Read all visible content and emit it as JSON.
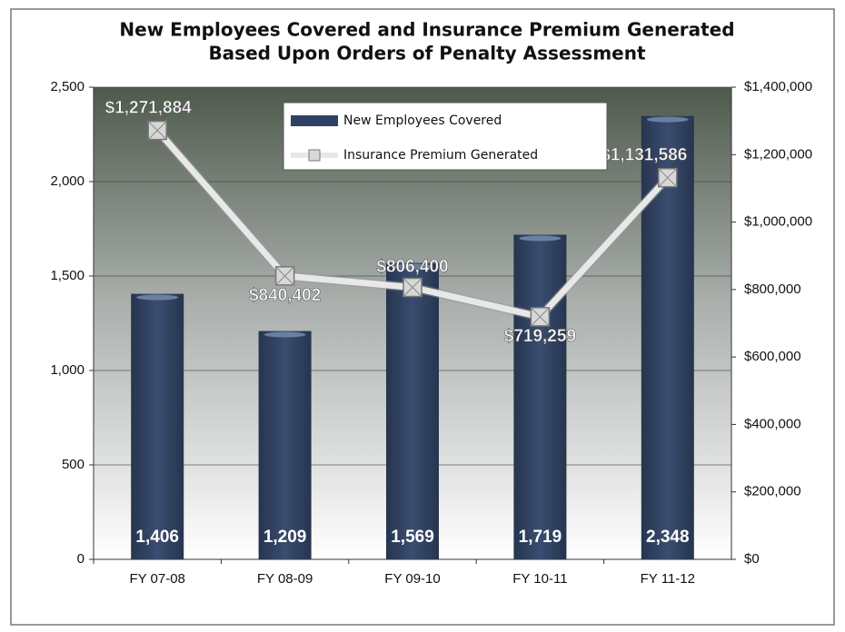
{
  "chart_data": {
    "type": "combo",
    "title": [
      "New Employees Covered and Insurance Premium Generated",
      "Based Upon Orders of Penalty Assessment"
    ],
    "categories": [
      "FY 07-08",
      "FY 08-09",
      "FY 09-10",
      "FY 10-11",
      "FY 11-12"
    ],
    "series": [
      {
        "name": "New Employees Covered",
        "type": "bar",
        "color": "#2f4164",
        "values": [
          1406,
          1209,
          1569,
          1719,
          2348
        ],
        "value_labels": [
          "1,406",
          "1,209",
          "1,569",
          "1,719",
          "2,348"
        ]
      },
      {
        "name": "Insurance Premium Generated",
        "type": "line",
        "color": "#e8e8e8",
        "axis": "y2",
        "values": [
          1271884,
          840402,
          806400,
          719259,
          1131586
        ],
        "value_labels": [
          "$1,271,884",
          "$840,402",
          "$806,400",
          "$719,259",
          "$1,131,586"
        ]
      }
    ],
    "ylim": [
      0,
      2500
    ],
    "yticks": [
      0,
      500,
      {
        "value": 1000,
        "label": "1,000"
      },
      {
        "value": 1500,
        "label": "1,500"
      },
      {
        "value": 2000,
        "label": "2,000"
      },
      {
        "value": 2500,
        "label": "2,500"
      }
    ],
    "y2lim": [
      0,
      1400000
    ],
    "y2ticks": [
      {
        "value": 0,
        "label": "$0"
      },
      {
        "value": 200000,
        "label": "$200,000"
      },
      {
        "value": 400000,
        "label": "$400,000"
      },
      {
        "value": 600000,
        "label": "$600,000"
      },
      {
        "value": 800000,
        "label": "$800,000"
      },
      {
        "value": 1000000,
        "label": "$1,000,000"
      },
      {
        "value": 1200000,
        "label": "$1,200,000"
      },
      {
        "value": 1400000,
        "label": "$1,400,000"
      }
    ],
    "grid": true,
    "legend": "top"
  }
}
